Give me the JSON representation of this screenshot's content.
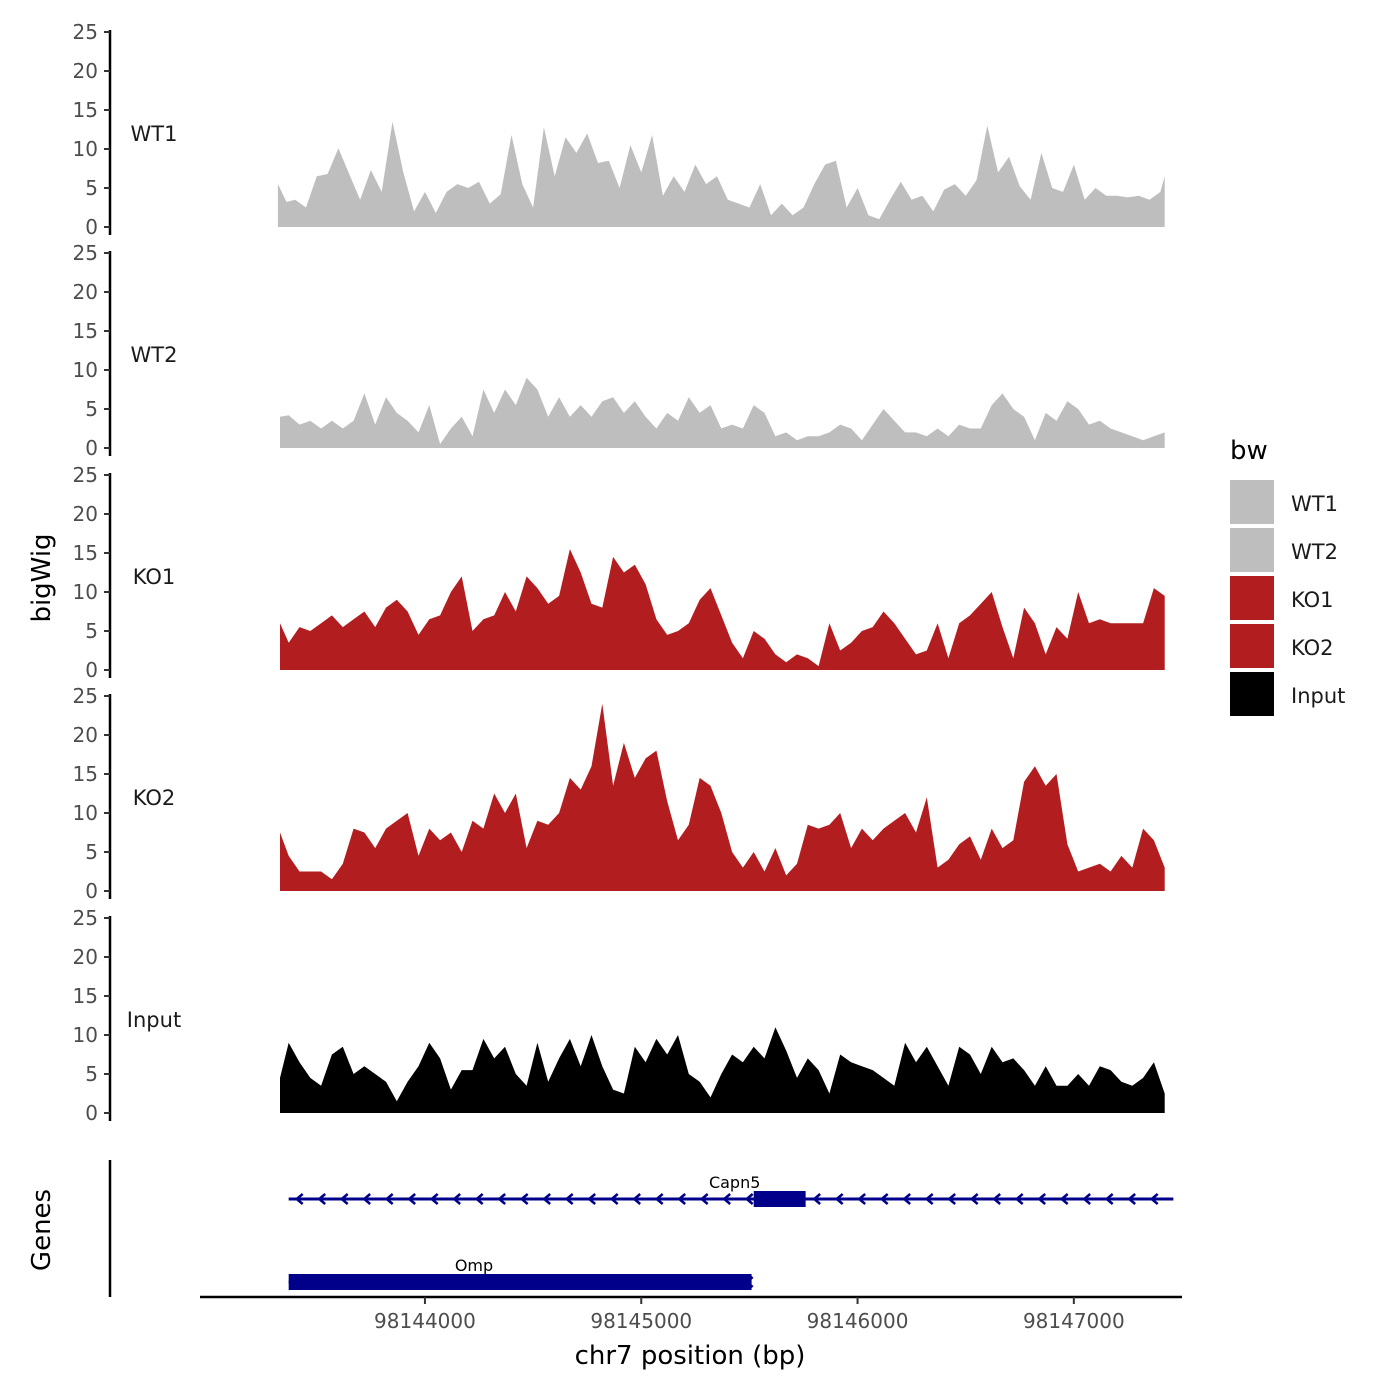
{
  "chart_data": {
    "type": "area",
    "xlabel": "chr7 position (bp)",
    "ylabel": "bigWig",
    "genes_label": "Genes",
    "xlim": [
      98142960,
      98147500
    ],
    "x_ticks": [
      98144000,
      98145000,
      98146000,
      98147000
    ],
    "ylim": [
      0,
      25
    ],
    "y_ticks": [
      0,
      5,
      10,
      15,
      20,
      25
    ],
    "legend": {
      "title": "bw",
      "position": "right",
      "entries": [
        {
          "name": "WT1",
          "color": "#bebebe"
        },
        {
          "name": "WT2",
          "color": "#bebebe"
        },
        {
          "name": "KO1",
          "color": "#b21d1f"
        },
        {
          "name": "KO2",
          "color": "#b21d1f"
        },
        {
          "name": "Input",
          "color": "#000000"
        }
      ]
    },
    "series": [
      {
        "name": "WT1",
        "color": "#bebebe",
        "x": [
          98143320,
          98143360,
          98143400,
          98143450,
          98143500,
          98143550,
          98143600,
          98143650,
          98143700,
          98143750,
          98143800,
          98143850,
          98143900,
          98143950,
          98144000,
          98144050,
          98144100,
          98144150,
          98144200,
          98144250,
          98144300,
          98144350,
          98144400,
          98144450,
          98144500,
          98144550,
          98144600,
          98144650,
          98144700,
          98144750,
          98144800,
          98144850,
          98144900,
          98144950,
          98145000,
          98145050,
          98145100,
          98145150,
          98145200,
          98145250,
          98145300,
          98145350,
          98145400,
          98145450,
          98145500,
          98145550,
          98145600,
          98145650,
          98145700,
          98145750,
          98145800,
          98145850,
          98145900,
          98145950,
          98146000,
          98146050,
          98146100,
          98146150,
          98146200,
          98146250,
          98146300,
          98146350,
          98146400,
          98146450,
          98146500,
          98146550,
          98146600,
          98146650,
          98146700,
          98146750,
          98146800,
          98146850,
          98146900,
          98146950,
          98147000,
          98147050,
          98147100,
          98147150,
          98147200,
          98147250,
          98147300,
          98147350,
          98147400,
          98147420
        ],
        "values": [
          5.5,
          3.2,
          3.5,
          2.5,
          6.5,
          6.8,
          10.1,
          6.8,
          3.5,
          7.3,
          4.5,
          13.5,
          7.0,
          2.0,
          4.5,
          1.8,
          4.5,
          5.5,
          5.0,
          5.8,
          3.0,
          4.2,
          11.8,
          5.5,
          2.5,
          12.8,
          6.5,
          11.5,
          9.5,
          12.0,
          8.2,
          8.5,
          5.0,
          10.5,
          7.0,
          11.8,
          4.0,
          6.5,
          4.5,
          8.0,
          5.5,
          6.5,
          3.5,
          3.0,
          2.5,
          5.5,
          1.5,
          3.0,
          1.5,
          2.5,
          5.5,
          8.0,
          8.5,
          2.5,
          5.0,
          1.5,
          1.0,
          3.5,
          5.8,
          3.5,
          4.0,
          2.0,
          4.8,
          5.5,
          4.0,
          6.0,
          13.0,
          7.0,
          9.0,
          5.2,
          3.5,
          9.5,
          5.0,
          4.5,
          8.0,
          3.5,
          5.0,
          4.0,
          4.0,
          3.8,
          4.0,
          3.5,
          4.5,
          6.5
        ]
      },
      {
        "name": "WT2",
        "color": "#bebebe",
        "x": [
          98143330,
          98143370,
          98143420,
          98143470,
          98143520,
          98143570,
          98143620,
          98143670,
          98143720,
          98143770,
          98143820,
          98143870,
          98143920,
          98143970,
          98144020,
          98144070,
          98144120,
          98144170,
          98144220,
          98144270,
          98144320,
          98144370,
          98144420,
          98144470,
          98144520,
          98144570,
          98144620,
          98144670,
          98144720,
          98144770,
          98144820,
          98144870,
          98144920,
          98144970,
          98145020,
          98145070,
          98145120,
          98145170,
          98145220,
          98145270,
          98145320,
          98145370,
          98145420,
          98145470,
          98145520,
          98145570,
          98145620,
          98145670,
          98145720,
          98145770,
          98145820,
          98145870,
          98145920,
          98145970,
          98146020,
          98146070,
          98146120,
          98146170,
          98146220,
          98146270,
          98146320,
          98146370,
          98146420,
          98146470,
          98146520,
          98146570,
          98146620,
          98146670,
          98146720,
          98146770,
          98146820,
          98146870,
          98146920,
          98146970,
          98147020,
          98147070,
          98147120,
          98147170,
          98147220,
          98147270,
          98147320,
          98147370,
          98147420
        ],
        "values": [
          4.0,
          4.2,
          3.0,
          3.5,
          2.5,
          3.5,
          2.5,
          3.5,
          7.0,
          3.0,
          6.5,
          4.5,
          3.5,
          2.0,
          5.5,
          0.5,
          2.5,
          4.0,
          1.5,
          7.5,
          4.5,
          7.5,
          5.5,
          9.0,
          7.5,
          4.0,
          6.5,
          4.0,
          5.5,
          4.0,
          6.0,
          6.5,
          4.5,
          6.0,
          4.0,
          2.5,
          4.5,
          3.5,
          6.5,
          4.5,
          5.5,
          2.5,
          3.0,
          2.5,
          5.5,
          4.5,
          1.5,
          2.0,
          1.0,
          1.5,
          1.5,
          2.0,
          3.0,
          2.5,
          1.0,
          3.0,
          5.0,
          3.5,
          2.0,
          2.0,
          1.5,
          2.5,
          1.5,
          3.0,
          2.5,
          2.5,
          5.5,
          7.0,
          5.0,
          4.0,
          1.0,
          4.5,
          3.5,
          6.0,
          5.0,
          3.0,
          3.5,
          2.5,
          2.0,
          1.5,
          1.0,
          1.5,
          2.0
        ]
      },
      {
        "name": "KO1",
        "color": "#b21d1f",
        "x": [
          98143330,
          98143370,
          98143420,
          98143470,
          98143520,
          98143570,
          98143620,
          98143670,
          98143720,
          98143770,
          98143820,
          98143870,
          98143920,
          98143970,
          98144020,
          98144070,
          98144120,
          98144170,
          98144220,
          98144270,
          98144320,
          98144370,
          98144420,
          98144470,
          98144520,
          98144570,
          98144620,
          98144670,
          98144720,
          98144770,
          98144820,
          98144870,
          98144920,
          98144970,
          98145020,
          98145070,
          98145120,
          98145170,
          98145220,
          98145270,
          98145320,
          98145370,
          98145420,
          98145470,
          98145520,
          98145570,
          98145620,
          98145670,
          98145720,
          98145770,
          98145820,
          98145870,
          98145920,
          98145970,
          98146020,
          98146070,
          98146120,
          98146170,
          98146220,
          98146270,
          98146320,
          98146370,
          98146420,
          98146470,
          98146520,
          98146570,
          98146620,
          98146670,
          98146720,
          98146770,
          98146820,
          98146870,
          98146920,
          98146970,
          98147020,
          98147070,
          98147120,
          98147170,
          98147220,
          98147270,
          98147320,
          98147370,
          98147420
        ],
        "values": [
          6.0,
          3.5,
          5.5,
          5.0,
          6.0,
          7.0,
          5.5,
          6.5,
          7.5,
          5.5,
          8.0,
          9.0,
          7.5,
          4.5,
          6.5,
          7.0,
          10.0,
          12.0,
          5.0,
          6.5,
          7.0,
          10.0,
          7.5,
          12.0,
          10.5,
          8.5,
          9.5,
          15.5,
          12.5,
          8.5,
          8.0,
          14.5,
          12.5,
          13.5,
          11.0,
          6.5,
          4.5,
          5.0,
          6.0,
          9.0,
          10.5,
          7.0,
          3.5,
          1.5,
          5.0,
          4.0,
          2.0,
          1.0,
          2.0,
          1.5,
          0.5,
          6.0,
          2.5,
          3.5,
          5.0,
          5.5,
          7.5,
          6.0,
          4.0,
          2.0,
          2.5,
          6.0,
          1.5,
          6.0,
          7.0,
          8.5,
          10.0,
          5.5,
          1.5,
          8.0,
          6.0,
          2.0,
          5.5,
          4.0,
          10.0,
          6.0,
          6.5,
          6.0,
          6.0,
          6.0,
          6.0,
          10.5,
          9.5
        ]
      },
      {
        "name": "KO2",
        "color": "#b21d1f",
        "x": [
          98143330,
          98143370,
          98143420,
          98143470,
          98143520,
          98143570,
          98143620,
          98143670,
          98143720,
          98143770,
          98143820,
          98143870,
          98143920,
          98143970,
          98144020,
          98144070,
          98144120,
          98144170,
          98144220,
          98144270,
          98144320,
          98144370,
          98144420,
          98144470,
          98144520,
          98144570,
          98144620,
          98144670,
          98144720,
          98144770,
          98144820,
          98144870,
          98144920,
          98144970,
          98145020,
          98145070,
          98145120,
          98145170,
          98145220,
          98145270,
          98145320,
          98145370,
          98145420,
          98145470,
          98145520,
          98145570,
          98145620,
          98145670,
          98145720,
          98145770,
          98145820,
          98145870,
          98145920,
          98145970,
          98146020,
          98146070,
          98146120,
          98146170,
          98146220,
          98146270,
          98146320,
          98146370,
          98146420,
          98146470,
          98146520,
          98146570,
          98146620,
          98146670,
          98146720,
          98146770,
          98146820,
          98146870,
          98146920,
          98146970,
          98147020,
          98147070,
          98147120,
          98147170,
          98147220,
          98147270,
          98147320,
          98147370,
          98147420
        ],
        "values": [
          7.5,
          4.5,
          2.5,
          2.5,
          2.5,
          1.5,
          3.5,
          8.0,
          7.5,
          5.5,
          8.0,
          9.0,
          10.0,
          4.5,
          8.0,
          6.5,
          7.5,
          5.0,
          9.0,
          8.0,
          12.5,
          10.0,
          12.5,
          5.5,
          9.0,
          8.5,
          10.0,
          14.5,
          13.0,
          16.0,
          24.0,
          13.5,
          19.0,
          14.5,
          17.0,
          18.0,
          11.5,
          6.5,
          8.5,
          14.5,
          13.5,
          10.0,
          5.0,
          3.0,
          5.0,
          2.5,
          5.5,
          2.0,
          3.5,
          8.5,
          8.0,
          8.5,
          10.0,
          5.5,
          8.0,
          6.5,
          8.0,
          9.0,
          10.0,
          7.5,
          12.0,
          3.0,
          4.0,
          6.0,
          7.0,
          4.0,
          8.0,
          5.5,
          6.5,
          14.0,
          16.0,
          13.5,
          15.0,
          6.0,
          2.5,
          3.0,
          3.5,
          2.5,
          4.5,
          3.0,
          8.0,
          6.5,
          3.0
        ]
      },
      {
        "name": "Input",
        "color": "#000000",
        "x": [
          98143330,
          98143370,
          98143420,
          98143470,
          98143520,
          98143570,
          98143620,
          98143670,
          98143720,
          98143770,
          98143820,
          98143870,
          98143920,
          98143970,
          98144020,
          98144070,
          98144120,
          98144170,
          98144220,
          98144270,
          98144320,
          98144370,
          98144420,
          98144470,
          98144520,
          98144570,
          98144620,
          98144670,
          98144720,
          98144770,
          98144820,
          98144870,
          98144920,
          98144970,
          98145020,
          98145070,
          98145120,
          98145170,
          98145220,
          98145270,
          98145320,
          98145370,
          98145420,
          98145470,
          98145520,
          98145570,
          98145620,
          98145670,
          98145720,
          98145770,
          98145820,
          98145870,
          98145920,
          98145970,
          98146020,
          98146070,
          98146120,
          98146170,
          98146220,
          98146270,
          98146320,
          98146370,
          98146420,
          98146470,
          98146520,
          98146570,
          98146620,
          98146670,
          98146720,
          98146770,
          98146820,
          98146870,
          98146920,
          98146970,
          98147020,
          98147070,
          98147120,
          98147170,
          98147220,
          98147270,
          98147320,
          98147370,
          98147420
        ],
        "values": [
          4.5,
          9.0,
          6.5,
          4.5,
          3.5,
          7.5,
          8.5,
          5.0,
          6.0,
          5.0,
          4.0,
          1.5,
          4.0,
          6.0,
          9.0,
          7.0,
          3.0,
          5.5,
          5.5,
          9.5,
          7.0,
          8.5,
          5.0,
          3.5,
          9.0,
          4.0,
          7.0,
          9.5,
          6.0,
          10.0,
          6.0,
          3.0,
          2.5,
          8.5,
          6.5,
          9.5,
          7.5,
          10.0,
          5.0,
          4.0,
          2.0,
          5.0,
          7.5,
          6.5,
          8.5,
          7.0,
          11.0,
          8.0,
          4.5,
          7.0,
          5.5,
          2.5,
          7.5,
          6.5,
          6.0,
          5.5,
          4.5,
          3.5,
          9.0,
          6.5,
          8.5,
          6.0,
          3.5,
          8.5,
          7.5,
          5.0,
          8.5,
          6.5,
          7.0,
          5.5,
          3.5,
          6.0,
          3.5,
          3.5,
          5.0,
          3.5,
          6.0,
          5.5,
          4.0,
          3.5,
          4.5,
          6.5,
          2.5
        ]
      }
    ],
    "genes": [
      {
        "name": "Capn5",
        "color": "#00008b",
        "start": 98143370,
        "end": 98147460,
        "exon_start": 98145520,
        "exon_end": 98145760,
        "strand": "-"
      },
      {
        "name": "Omp",
        "color": "#00008b",
        "start": 98143370,
        "end": 98145510,
        "exon_start": 98143370,
        "exon_end": 98145510,
        "strand": "-"
      }
    ]
  }
}
